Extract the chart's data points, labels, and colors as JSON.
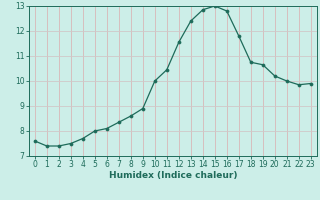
{
  "x": [
    0,
    1,
    2,
    3,
    4,
    5,
    6,
    7,
    8,
    9,
    10,
    11,
    12,
    13,
    14,
    15,
    16,
    17,
    18,
    19,
    20,
    21,
    22,
    23
  ],
  "y": [
    7.6,
    7.4,
    7.4,
    7.5,
    7.7,
    8.0,
    8.1,
    8.35,
    8.6,
    8.9,
    10.0,
    10.45,
    11.55,
    12.4,
    12.85,
    13.0,
    12.8,
    11.8,
    10.75,
    10.65,
    10.2,
    10.0,
    9.85,
    9.9
  ],
  "xlabel": "Humidex (Indice chaleur)",
  "ylim": [
    7,
    13
  ],
  "xlim_min": -0.5,
  "xlim_max": 23.5,
  "yticks": [
    7,
    8,
    9,
    10,
    11,
    12,
    13
  ],
  "xticks": [
    0,
    1,
    2,
    3,
    4,
    5,
    6,
    7,
    8,
    9,
    10,
    11,
    12,
    13,
    14,
    15,
    16,
    17,
    18,
    19,
    20,
    21,
    22,
    23
  ],
  "line_color": "#1e6b5a",
  "marker_color": "#1e6b5a",
  "bg_color": "#cceee8",
  "grid_color_v": "#d8b8b8",
  "grid_color_h": "#d0c8c8",
  "spine_color": "#1e6b5a",
  "tick_color": "#1e6b5a",
  "label_fontsize": 5.5,
  "xlabel_fontsize": 6.5
}
